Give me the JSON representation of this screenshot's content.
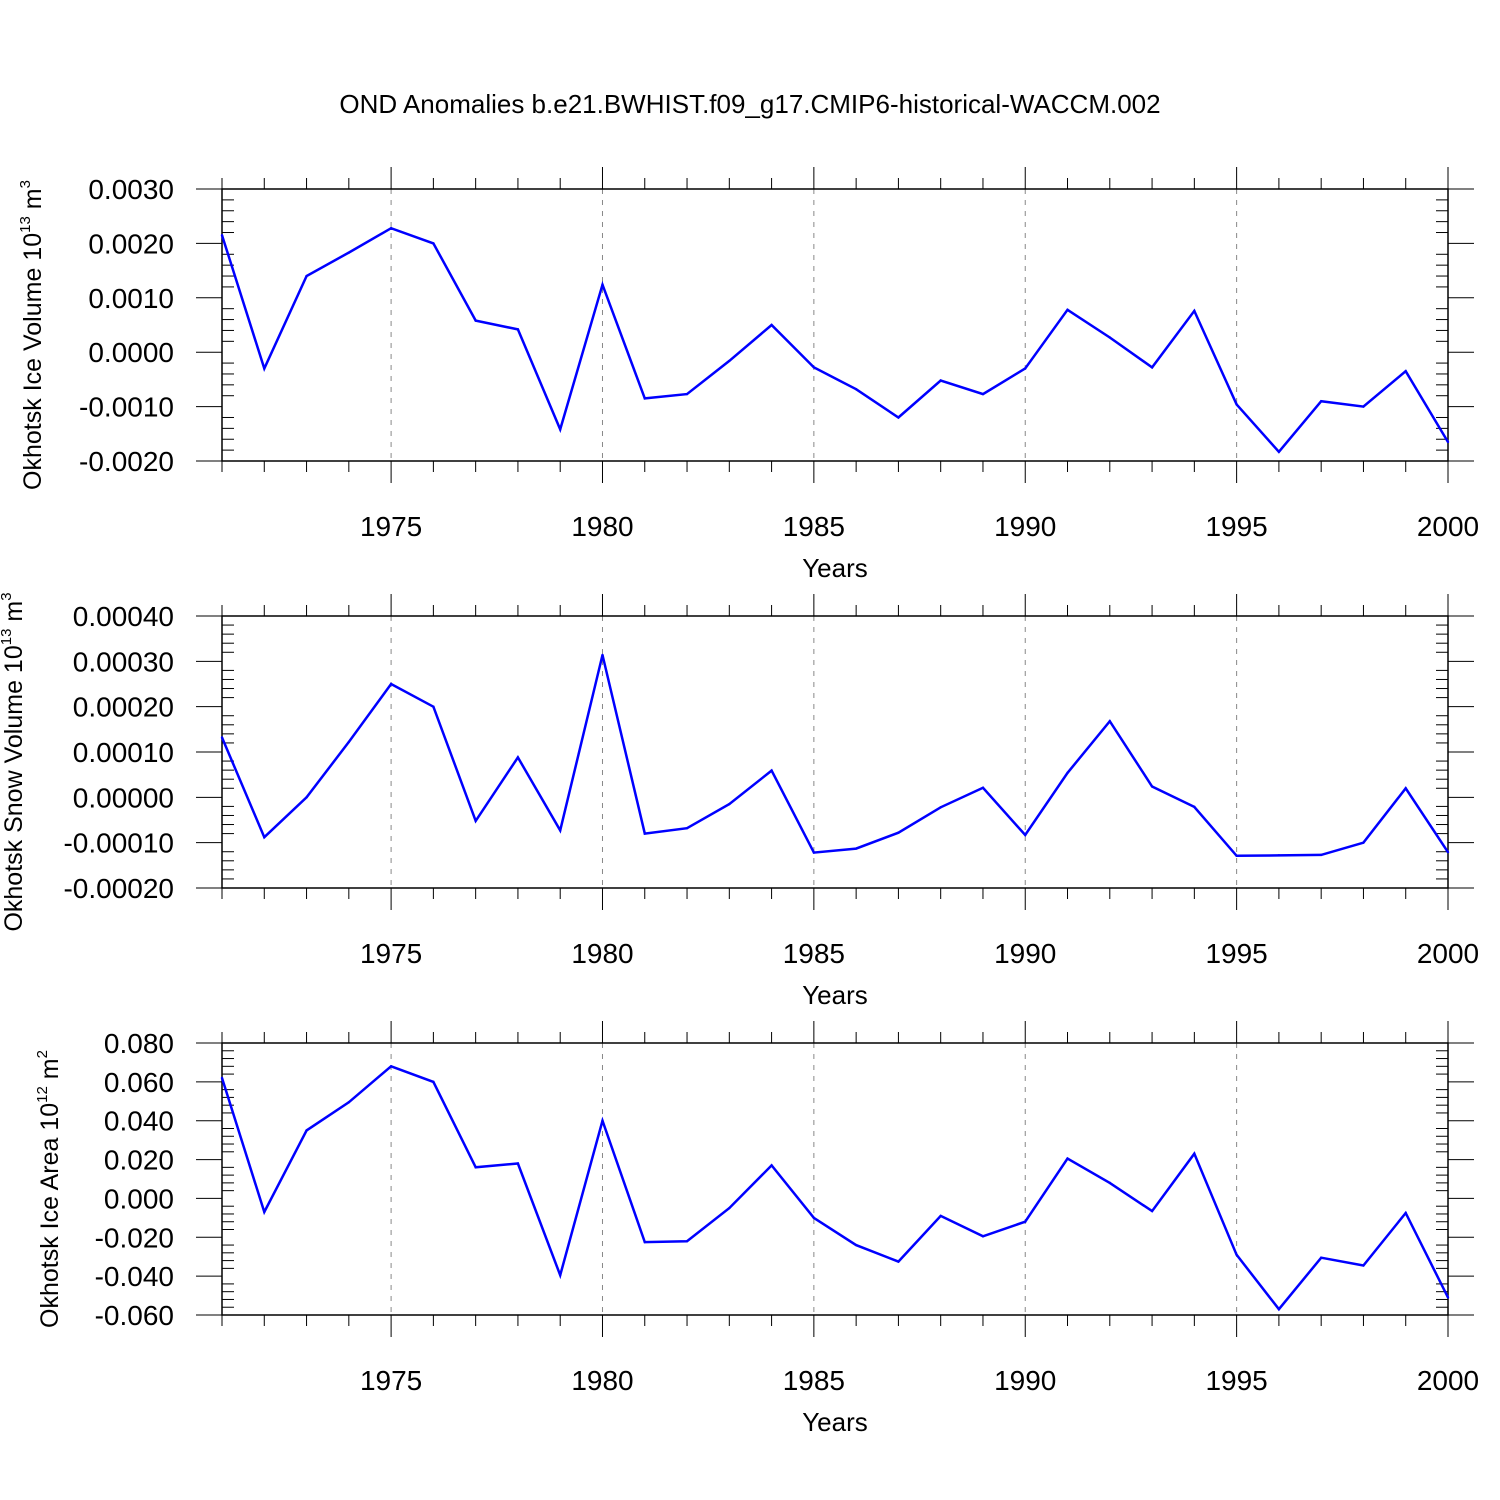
{
  "title": "OND Anomalies b.e21.BWHIST.f09_g17.CMIP6-historical-WACCM.002",
  "colors": {
    "line": "#0000ff",
    "axis": "#000000",
    "grid": "#888888"
  },
  "chart_data": [
    {
      "type": "line",
      "ylabel": {
        "text": "Okhotsk Ice Volume 10",
        "exp": "13",
        "unit": " m",
        "unit_exp": "3"
      },
      "xlabel": "Years",
      "xlim": [
        1971,
        2000
      ],
      "ylim": [
        -0.002,
        0.003
      ],
      "yticks": [
        -0.002,
        -0.001,
        0.0,
        0.001,
        0.002,
        0.003
      ],
      "ytick_labels": [
        "-0.0020",
        "-0.0010",
        "0.0000",
        "0.0010",
        "0.0020",
        "0.0030"
      ],
      "xticks": [
        1975,
        1980,
        1985,
        1990,
        1995,
        2000
      ],
      "xtick_labels": [
        "1975",
        "1980",
        "1985",
        "1990",
        "1995",
        "2000"
      ],
      "grid": "dashed vertical at major x ticks",
      "x": [
        1971,
        1972,
        1973,
        1974,
        1975,
        1976,
        1977,
        1978,
        1979,
        1980,
        1981,
        1982,
        1983,
        1984,
        1985,
        1986,
        1987,
        1988,
        1989,
        1990,
        1991,
        1992,
        1993,
        1994,
        1995,
        1996,
        1997,
        1998,
        1999,
        2000
      ],
      "values": [
        0.00215,
        -0.0003,
        0.0014,
        0.00183,
        0.00228,
        0.002,
        0.00058,
        0.00042,
        -0.00142,
        0.00124,
        -0.00085,
        -0.00077,
        -0.00016,
        0.0005,
        -0.00028,
        -0.00068,
        -0.0012,
        -0.00052,
        -0.00077,
        -0.0003,
        0.00078,
        0.00027,
        -0.00028,
        0.00076,
        -0.00096,
        -0.00183,
        -0.0009,
        -0.001,
        -0.00035,
        -0.00165
      ]
    },
    {
      "type": "line",
      "ylabel": {
        "text": "Okhotsk Snow Volume 10",
        "exp": "13",
        "unit": " m",
        "unit_exp": "3"
      },
      "xlabel": "Years",
      "xlim": [
        1971,
        2000
      ],
      "ylim": [
        -0.0002,
        0.0004
      ],
      "yticks": [
        -0.0002,
        -0.0001,
        0.0,
        0.0001,
        0.0002,
        0.0003,
        0.0004
      ],
      "ytick_labels": [
        "-0.00020",
        "-0.00010",
        "0.00000",
        "0.00010",
        "0.00020",
        "0.00030",
        "0.00040"
      ],
      "xticks": [
        1975,
        1980,
        1985,
        1990,
        1995,
        2000
      ],
      "xtick_labels": [
        "1975",
        "1980",
        "1985",
        "1990",
        "1995",
        "2000"
      ],
      "grid": "dashed vertical at major x ticks",
      "x": [
        1971,
        1972,
        1973,
        1974,
        1975,
        1976,
        1977,
        1978,
        1979,
        1980,
        1981,
        1982,
        1983,
        1984,
        1985,
        1986,
        1987,
        1988,
        1989,
        1990,
        1991,
        1992,
        1993,
        1994,
        1995,
        1996,
        1997,
        1998,
        1999,
        2000
      ],
      "values": [
        0.000132,
        -8.8e-05,
        0.0,
        0.000122,
        0.00025,
        0.0002,
        -5.2e-05,
        8.8e-05,
        -7.3e-05,
        0.000314,
        -8e-05,
        -6.8e-05,
        -1.5e-05,
        5.9e-05,
        -0.000122,
        -0.000113,
        -7.8e-05,
        -2.2e-05,
        2.1e-05,
        -8.3e-05,
        5.4e-05,
        0.000168,
        2.4e-05,
        -2.1e-05,
        -0.000129,
        -0.000128,
        -0.000127,
        -0.0001,
        2e-05,
        -0.000121
      ]
    },
    {
      "type": "line",
      "ylabel": {
        "text": "Okhotsk Ice Area 10",
        "exp": "12",
        "unit": " m",
        "unit_exp": "2"
      },
      "xlabel": "Years",
      "xlim": [
        1971,
        2000
      ],
      "ylim": [
        -0.06,
        0.08
      ],
      "yticks": [
        -0.06,
        -0.04,
        -0.02,
        0.0,
        0.02,
        0.04,
        0.06,
        0.08
      ],
      "ytick_labels": [
        "-0.060",
        "-0.040",
        "-0.020",
        "0.000",
        "0.020",
        "0.040",
        "0.060",
        "0.080"
      ],
      "xticks": [
        1975,
        1980,
        1985,
        1990,
        1995,
        2000
      ],
      "xtick_labels": [
        "1975",
        "1980",
        "1985",
        "1990",
        "1995",
        "2000"
      ],
      "grid": "dashed vertical at major x ticks",
      "x": [
        1971,
        1972,
        1973,
        1974,
        1975,
        1976,
        1977,
        1978,
        1979,
        1980,
        1981,
        1982,
        1983,
        1984,
        1985,
        1986,
        1987,
        1988,
        1989,
        1990,
        1991,
        1992,
        1993,
        1994,
        1995,
        1996,
        1997,
        1998,
        1999,
        2000
      ],
      "values": [
        0.062,
        -0.007,
        0.035,
        0.0495,
        0.068,
        0.06,
        0.016,
        0.018,
        -0.0395,
        0.04,
        -0.0225,
        -0.022,
        -0.005,
        0.017,
        -0.01,
        -0.024,
        -0.0325,
        -0.009,
        -0.0195,
        -0.012,
        0.0205,
        0.008,
        -0.0065,
        0.023,
        -0.029,
        -0.057,
        -0.0305,
        -0.0345,
        -0.0075,
        -0.051
      ]
    }
  ]
}
